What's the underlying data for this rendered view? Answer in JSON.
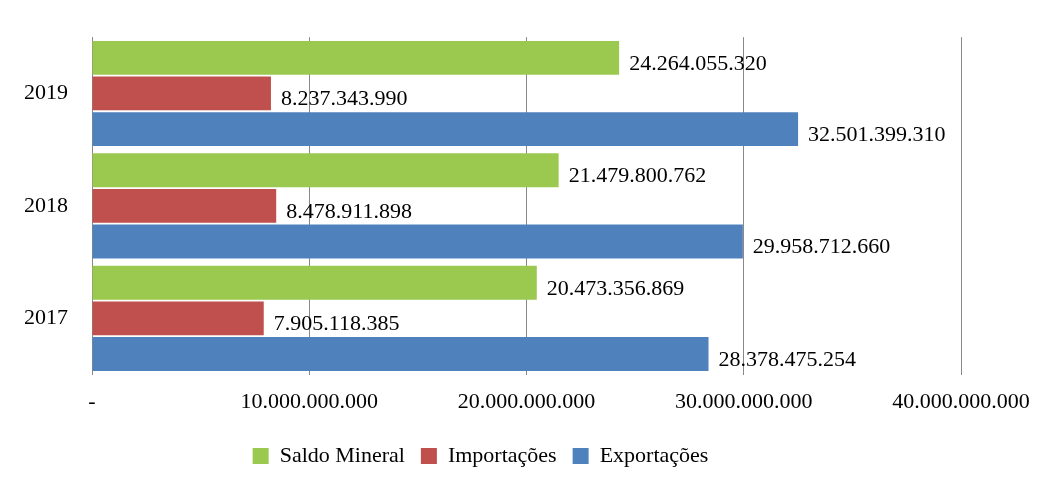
{
  "chart_data": {
    "type": "bar",
    "orientation": "horizontal",
    "categories": [
      "2019",
      "2018",
      "2017"
    ],
    "series": [
      {
        "name": "Saldo Mineral",
        "color": "#9bc94f",
        "values": [
          24264055320,
          21479800762,
          20473356869
        ],
        "value_labels": [
          "24.264.055.320",
          "21.479.800.762",
          "20.473.356.869"
        ]
      },
      {
        "name": "Importações",
        "color": "#c0504d",
        "values": [
          8237343990,
          8478911898,
          7905118385
        ],
        "value_labels": [
          "8.237.343.990",
          "8.478.911.898",
          "7.905.118.385"
        ]
      },
      {
        "name": "Exportações",
        "color": "#4f81bd",
        "values": [
          32501399310,
          29958712660,
          28378475254
        ],
        "value_labels": [
          "32.501.399.310",
          "29.958.712.660",
          "28.378.475.254"
        ]
      }
    ],
    "xlim": [
      0,
      40000000000
    ],
    "xticks": [
      {
        "value": 0,
        "label": "-"
      },
      {
        "value": 10000000000,
        "label": "10.000.000.000"
      },
      {
        "value": 20000000000,
        "label": "20.000.000.000"
      },
      {
        "value": 30000000000,
        "label": "30.000.000.000"
      },
      {
        "value": 40000000000,
        "label": "40.000.000.000"
      }
    ],
    "grid": "x",
    "legend": "bottom"
  }
}
